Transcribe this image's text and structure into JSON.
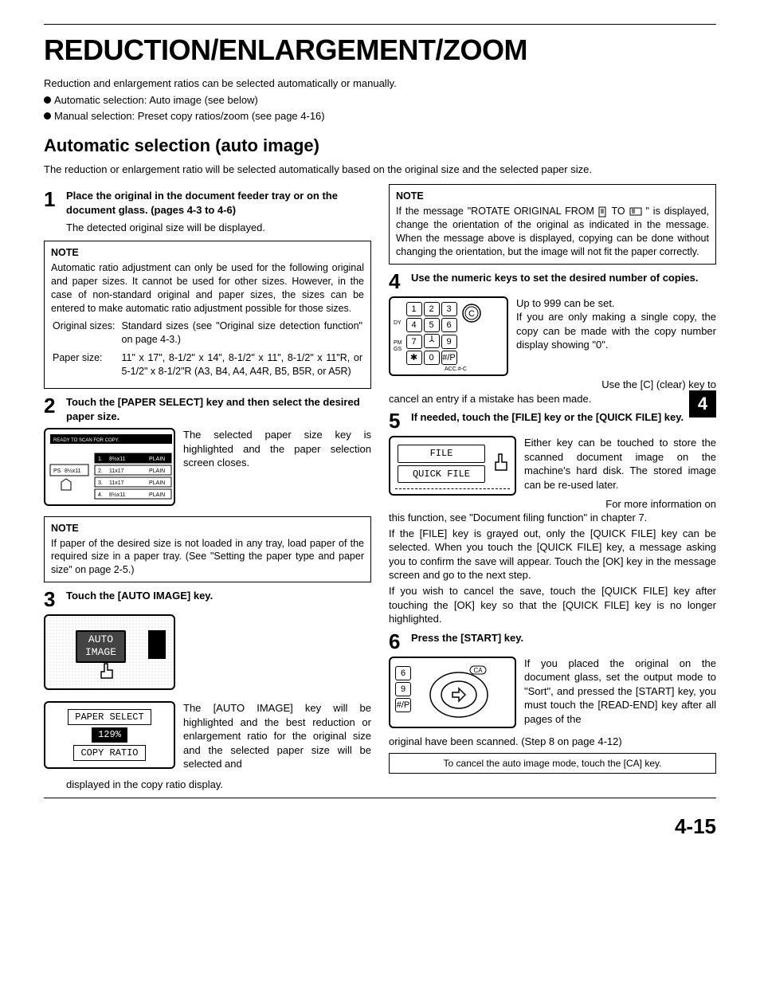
{
  "title": "REDUCTION/ENLARGEMENT/ZOOM",
  "intro": "Reduction and enlargement ratios can be selected automatically or manually.",
  "bullets": [
    "Automatic selection: Auto image (see below)",
    "Manual selection: Preset copy ratios/zoom (see page 4-16)"
  ],
  "section_heading": "Automatic selection (auto image)",
  "section_intro": "The reduction or enlargement ratio will be selected automatically based on the original size and the selected paper size.",
  "side_tab": "4",
  "page_number": "4-15",
  "left": {
    "step1": {
      "title": "Place the original in the document feeder tray or on the document glass. (pages 4-3 to 4-6)",
      "body": "The detected original size will be displayed."
    },
    "note1": {
      "head": "NOTE",
      "body": "Automatic ratio adjustment can only be used for the following original and paper sizes. It cannot be used for other sizes. However, in the case of non-standard original and paper sizes, the sizes can be entered to make automatic ratio adjustment possible for those sizes.",
      "orig_label": "Original sizes:",
      "orig_val": "Standard sizes (see \"Original size detection function\" on page 4-3.)",
      "paper_label": "Paper size:",
      "paper_val": "11\" x 17\", 8-1/2\" x 14\", 8-1/2\" x 11\", 8-1/2\" x 11\"R, or 5-1/2\" x 8-1/2\"R (A3, B4, A4, A4R, B5, B5R, or A5R)"
    },
    "step2": {
      "title": "Touch the [PAPER SELECT] key and then select the desired paper size.",
      "caption": "The selected paper size key is highlighted and the paper selection screen closes."
    },
    "note2": {
      "head": "NOTE",
      "body": "If paper of the desired size is not loaded in any tray, load paper of the required size in a paper tray. (See \"Setting the paper type and paper size\" on page 2-5.)"
    },
    "step3": {
      "title": "Touch the [AUTO IMAGE] key.",
      "auto_btn_l1": "AUTO",
      "auto_btn_l2": "IMAGE",
      "panel2_l1": "PAPER SELECT",
      "panel2_l2": "129%",
      "panel2_l3": "COPY RATIO",
      "caption": "The [AUTO IMAGE] key will be highlighted and the best reduction or enlargement ratio for the original size and the selected paper size will be selected and",
      "tail": "displayed in the copy ratio display."
    },
    "paper_screen": {
      "header": "READY TO SCAN FOR COPY.",
      "ps_label": "PS",
      "ps_size": "8½x11",
      "rows": [
        {
          "n": "1.",
          "size": "8½x11",
          "type": "PLAIN"
        },
        {
          "n": "2.",
          "size": "11x17",
          "type": "PLAIN"
        },
        {
          "n": "3.",
          "size": "11x17",
          "type": "PLAIN"
        },
        {
          "n": "4.",
          "size": "8½x11",
          "type": "PLAIN"
        }
      ]
    }
  },
  "right": {
    "note3": {
      "head": "NOTE",
      "body_a": "If the message \"ROTATE ORIGINAL FROM ",
      "body_b": " TO ",
      "body_c": "\" is displayed, change the orientation of the original as indicated in the message. When the message above is displayed, copying can be done without changing the orientation, but the image will not fit the paper correctly."
    },
    "step4": {
      "title": "Use the numeric keys to set the desired number of copies.",
      "caption": "Up to 999 can be set.\nIf you are only making a single copy, the copy can be made with the copy number display showing \"0\".",
      "tail": "Use the [C] (clear) key to",
      "tail2": "cancel an entry if a mistake has been made."
    },
    "keypad": {
      "rows": [
        [
          "1",
          "2",
          "3"
        ],
        [
          "4",
          "5",
          "6"
        ],
        [
          "7",
          "",
          "9"
        ],
        [
          "✱",
          "0",
          "#/P"
        ]
      ],
      "acc": "ACC.#-C",
      "clear": "C"
    },
    "step5": {
      "title": "If needed, touch the [FILE] key or the [QUICK FILE] key.",
      "file_btn": "FILE",
      "qfile_btn": "QUICK FILE",
      "caption": "Either key can be touched to store the scanned document image on the machine's hard disk. The stored image can be re-used later.",
      "tail": "For more information on",
      "p2": "this function, see \"Document filing function\" in chapter 7.",
      "p3": "If the [FILE] key is grayed out, only the [QUICK FILE] key can be selected. When you touch the [QUICK FILE] key, a message asking you to confirm the save will appear. Touch the [OK] key in the message screen and go to the next step.",
      "p4": "If you wish to cancel the save, touch the [QUICK FILE] key after touching the [OK] key so that the [QUICK FILE] key is no longer highlighted."
    },
    "step6": {
      "title": "Press the [START] key.",
      "sidekeys": [
        "6",
        "9",
        "#/P"
      ],
      "ca": "CA",
      "caption": "If you placed the original on the document glass, set the output mode to \"Sort\", and pressed the [START] key, you must touch the [READ-END] key after all pages of the",
      "tail": "original have been scanned. (Step 8 on page 4-12)"
    },
    "cancel_box": "To cancel the auto image mode, touch the [CA] key."
  }
}
